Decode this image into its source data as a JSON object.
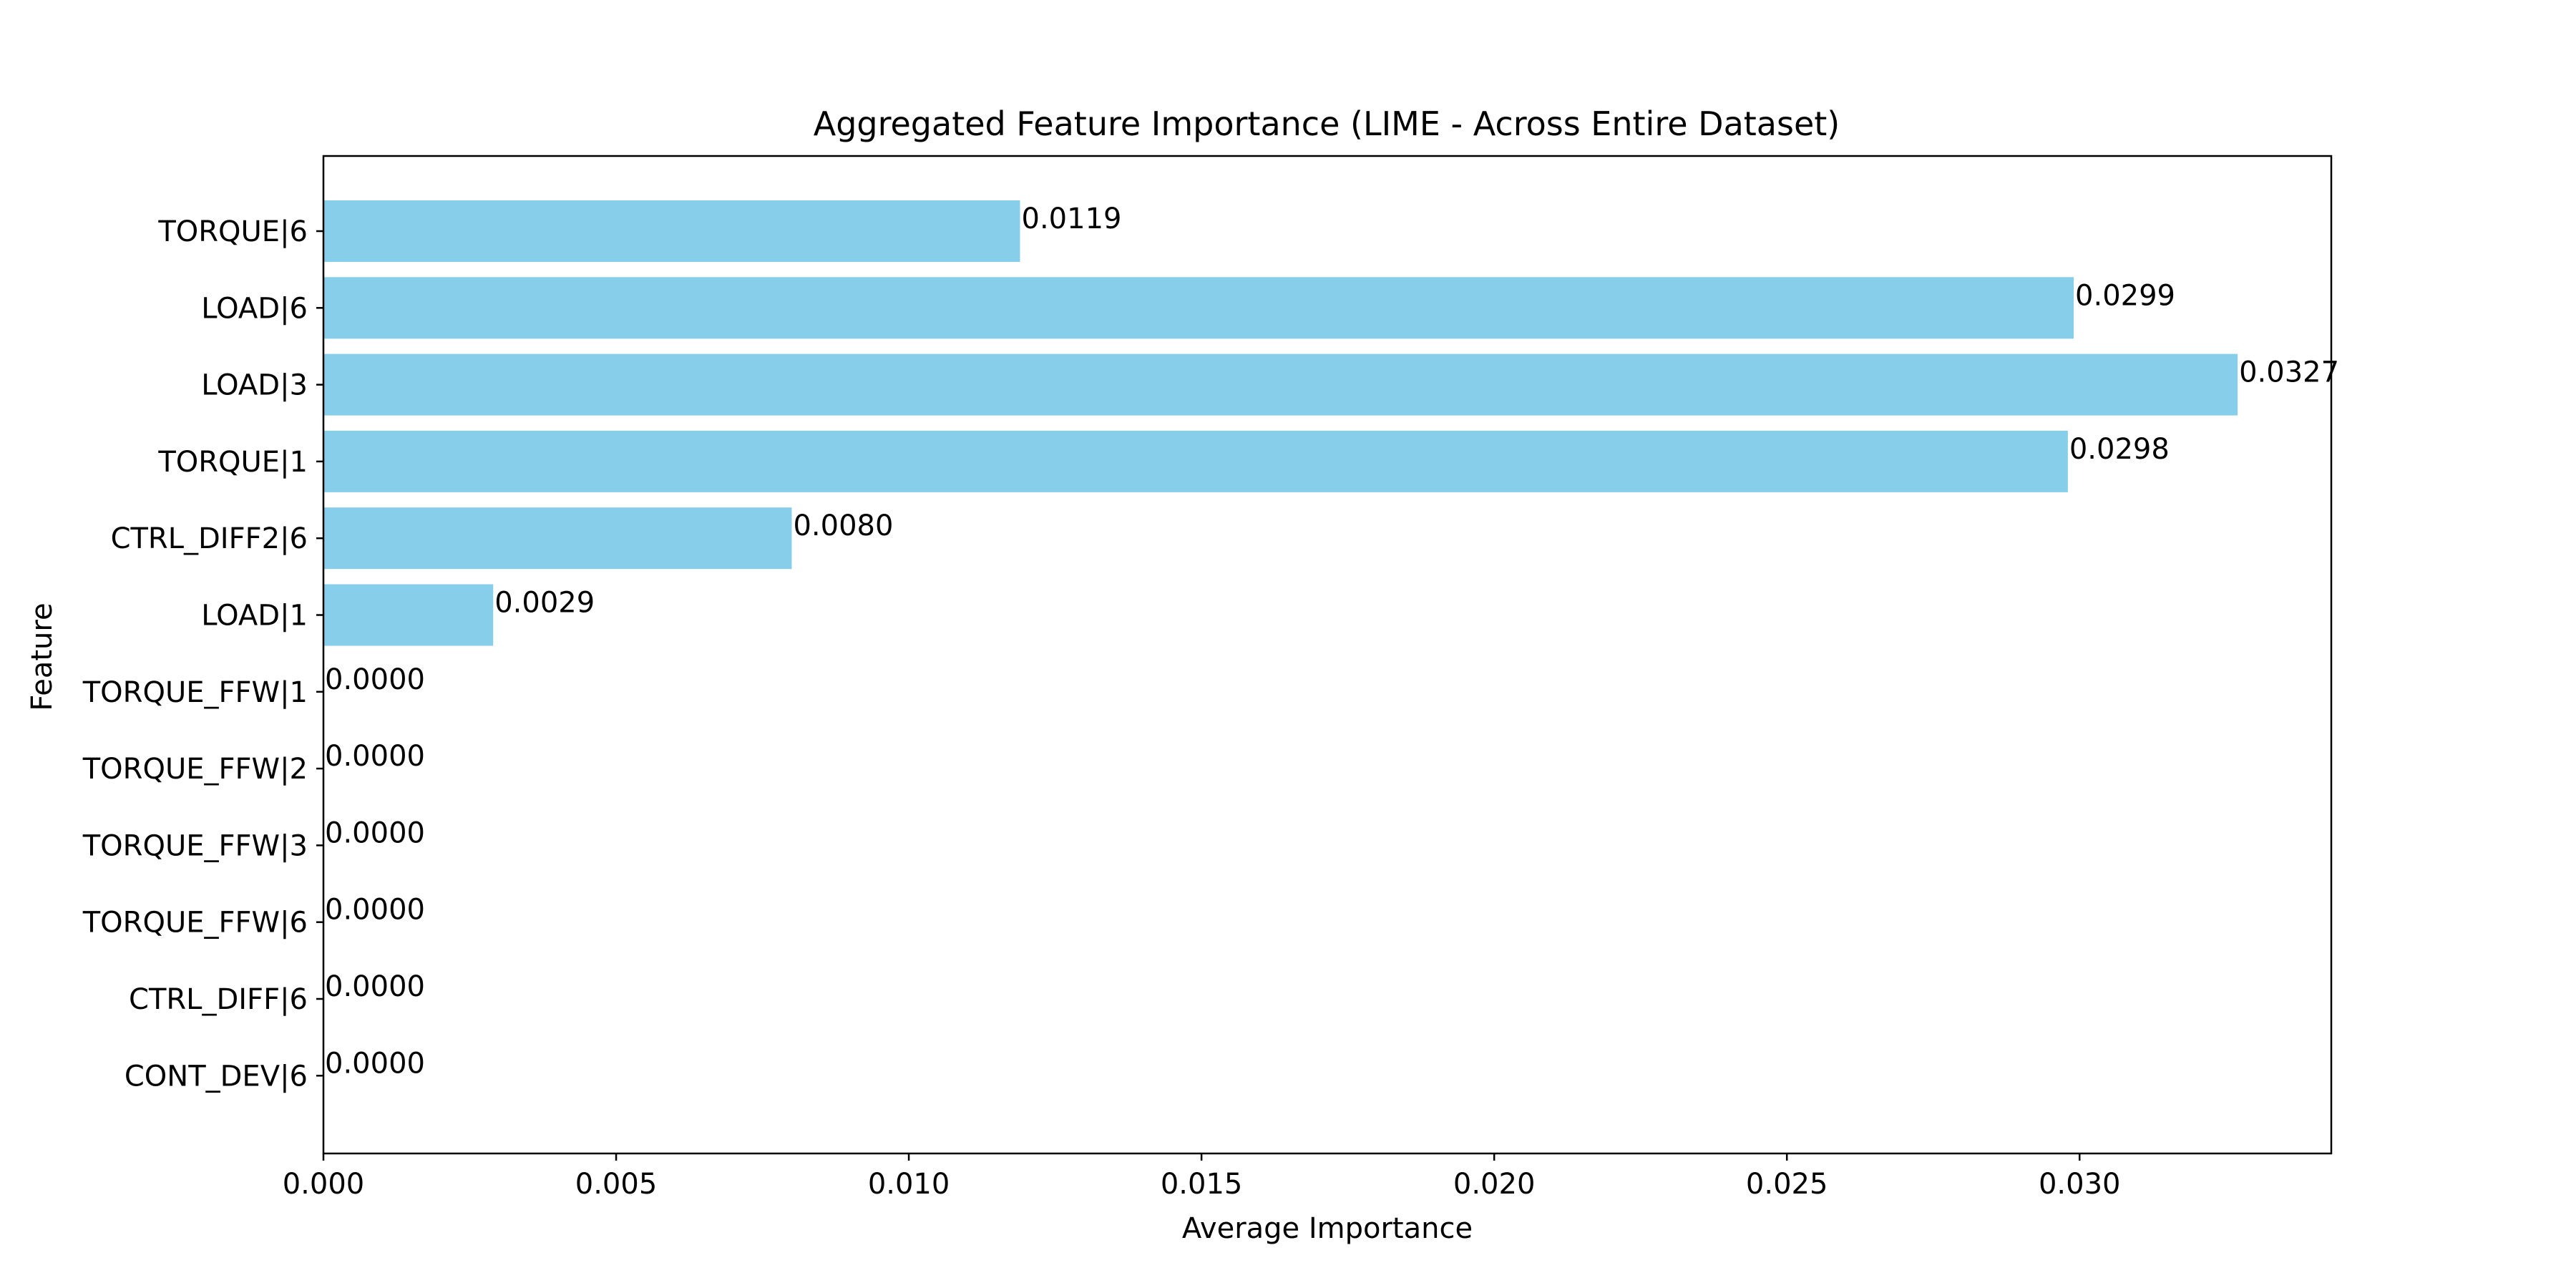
{
  "chart_data": {
    "type": "bar",
    "orientation": "horizontal",
    "title": "Aggregated Feature Importance (LIME - Across Entire Dataset)",
    "xlabel": "Average Importance",
    "ylabel": "Feature",
    "xlim": [
      0,
      0.0343
    ],
    "x_ticks": [
      "0.000",
      "0.005",
      "0.010",
      "0.015",
      "0.020",
      "0.025",
      "0.030"
    ],
    "x_tick_values": [
      0,
      0.005,
      0.01,
      0.015,
      0.02,
      0.025,
      0.03
    ],
    "categories": [
      "TORQUE|6",
      "LOAD|6",
      "LOAD|3",
      "TORQUE|1",
      "CTRL_DIFF2|6",
      "LOAD|1",
      "TORQUE_FFW|1",
      "TORQUE_FFW|2",
      "TORQUE_FFW|3",
      "TORQUE_FFW|6",
      "CTRL_DIFF|6",
      "CONT_DEV|6"
    ],
    "values": [
      0.0119,
      0.0299,
      0.0327,
      0.0298,
      0.008,
      0.0029,
      0,
      0,
      0,
      0,
      0,
      0
    ],
    "value_labels": [
      "0.0119",
      "0.0299",
      "0.0327",
      "0.0298",
      "0.0080",
      "0.0029",
      "0.0000",
      "0.0000",
      "0.0000",
      "0.0000",
      "0.0000",
      "0.0000"
    ],
    "grid": false,
    "legend": "none",
    "colors": {
      "bar": "#87ceeb",
      "axis": "#000000",
      "text": "#000000"
    }
  }
}
